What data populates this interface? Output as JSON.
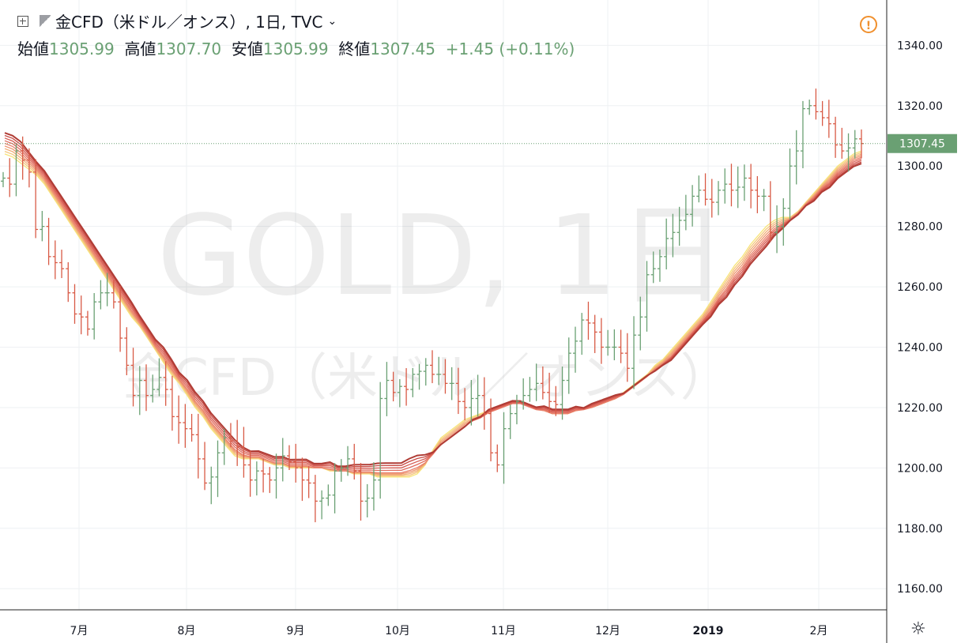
{
  "header": {
    "symbol": "金CFD（米ドル／オンス）, 1日, TVC",
    "open_label": "始値",
    "open_value": "1305.99",
    "high_label": "高値",
    "high_value": "1307.70",
    "low_label": "安値",
    "low_value": "1305.99",
    "close_label": "終値",
    "close_value": "1307.45",
    "change": "+1.45 (+0.11%)",
    "warning_glyph": "!"
  },
  "watermark": {
    "line1": "GOLD, 1日",
    "line2": "金CFD（米ドル／オンス）"
  },
  "price_label": "1307.45",
  "colors": {
    "up": "#6aa073",
    "down": "#d85a45",
    "grid": "#eef0f3",
    "last_price": "#6aa073"
  },
  "chart_data": {
    "type": "ohlc",
    "y_range": [
      1153,
      1355
    ],
    "y_ticks": [
      "1340.00",
      "1320.00",
      "1300.00",
      "1280.00",
      "1260.00",
      "1240.00",
      "1220.00",
      "1200.00",
      "1180.00",
      "1160.00"
    ],
    "x_ticks": [
      "7月",
      "8月",
      "9月",
      "10月",
      "11月",
      "12月",
      "2019",
      "2月"
    ],
    "last_price": 1307.45,
    "series": [
      {
        "values": [
          1296,
          1294,
          1305,
          1302,
          1298,
          1279,
          1280,
          1270,
          1268,
          1266,
          1258,
          1251,
          1250,
          1246,
          1255,
          1258,
          1258,
          1255,
          1243,
          1234,
          1224,
          1229,
          1224,
          1226,
          1230,
          1226,
          1217,
          1215,
          1213,
          1211,
          1203,
          1195,
          1197,
          1205,
          1210,
          1209,
          1207,
          1201,
          1196,
          1199,
          1198,
          1196,
          1200,
          1204,
          1202,
          1200,
          1196,
          1195,
          1189,
          1190,
          1191,
          1199,
          1200,
          1203,
          1199,
          1189,
          1190,
          1196,
          1223,
          1229,
          1225,
          1227,
          1226,
          1231,
          1232,
          1234,
          1231,
          1231,
          1228,
          1228,
          1222,
          1220,
          1223,
          1224,
          1218,
          1205,
          1201,
          1213,
          1218,
          1222,
          1224,
          1226,
          1228,
          1225,
          1222,
          1221,
          1229,
          1238,
          1242,
          1249,
          1248,
          1245,
          1240,
          1240,
          1240,
          1238,
          1233,
          1244,
          1250,
          1264,
          1266,
          1270,
          1276,
          1278,
          1282,
          1284,
          1290,
          1292,
          1289,
          1288,
          1292,
          1294,
          1292,
          1293,
          1296,
          1292,
          1290,
          1290,
          1278,
          1280,
          1286,
          1300,
          1305,
          1319,
          1320,
          1318,
          1316,
          1314,
          1307,
          1305,
          1306,
          1309,
          1307.45
        ]
      },
      {
        "name": "",
        "values": [
          1304,
          1303,
          1301,
          1299,
          1297,
          1294,
          1290,
          1286,
          1282,
          1278,
          1274,
          1270,
          1266,
          1262,
          1258,
          1254,
          1250,
          1247,
          1243,
          1239,
          1235,
          1231,
          1228,
          1224,
          1220,
          1217,
          1213,
          1210,
          1207,
          1204,
          1203,
          1203,
          1203,
          1202,
          1201,
          1201,
          1200,
          1200,
          1200,
          1200,
          1200,
          1199,
          1199,
          1199,
          1198,
          1198,
          1198,
          1197,
          1197,
          1197,
          1197,
          1197,
          1198,
          1201,
          1206,
          1210,
          1212,
          1214,
          1216,
          1217,
          1218,
          1219,
          1220,
          1221,
          1222,
          1222,
          1221,
          1220,
          1219,
          1218,
          1218,
          1218,
          1219,
          1220,
          1220,
          1221,
          1222,
          1223,
          1225,
          1227,
          1229,
          1231,
          1234,
          1236,
          1239,
          1242,
          1245,
          1248,
          1251,
          1255,
          1259,
          1263,
          1267,
          1270,
          1274,
          1277,
          1280,
          1282,
          1283,
          1283,
          1285,
          1288,
          1291,
          1294,
          1297,
          1300,
          1302,
          1304,
          1305
        ]
      },
      {
        "values": [
          1309,
          1308,
          1306,
          1303,
          1300,
          1297,
          1293,
          1289,
          1285,
          1281,
          1277,
          1273,
          1269,
          1265,
          1261,
          1257,
          1253,
          1249,
          1245,
          1241,
          1238,
          1234,
          1230,
          1227,
          1223,
          1220,
          1216,
          1213,
          1210,
          1207,
          1205,
          1204,
          1204,
          1203,
          1202,
          1202,
          1201,
          1201,
          1201,
          1200,
          1200,
          1200,
          1199,
          1199,
          1199,
          1199,
          1199,
          1199,
          1199,
          1199,
          1199,
          1200,
          1201,
          1202,
          1204,
          1207,
          1209,
          1211,
          1213,
          1215,
          1216,
          1218,
          1219,
          1220,
          1221,
          1221,
          1220,
          1219,
          1219,
          1218,
          1218,
          1218,
          1219,
          1219,
          1220,
          1221,
          1222,
          1223,
          1224,
          1226,
          1228,
          1230,
          1232,
          1234,
          1236,
          1239,
          1242,
          1245,
          1248,
          1251,
          1255,
          1258,
          1262,
          1265,
          1269,
          1272,
          1275,
          1278,
          1280,
          1282,
          1284,
          1287,
          1289,
          1292,
          1294,
          1297,
          1299,
          1301,
          1302
        ]
      }
    ]
  }
}
